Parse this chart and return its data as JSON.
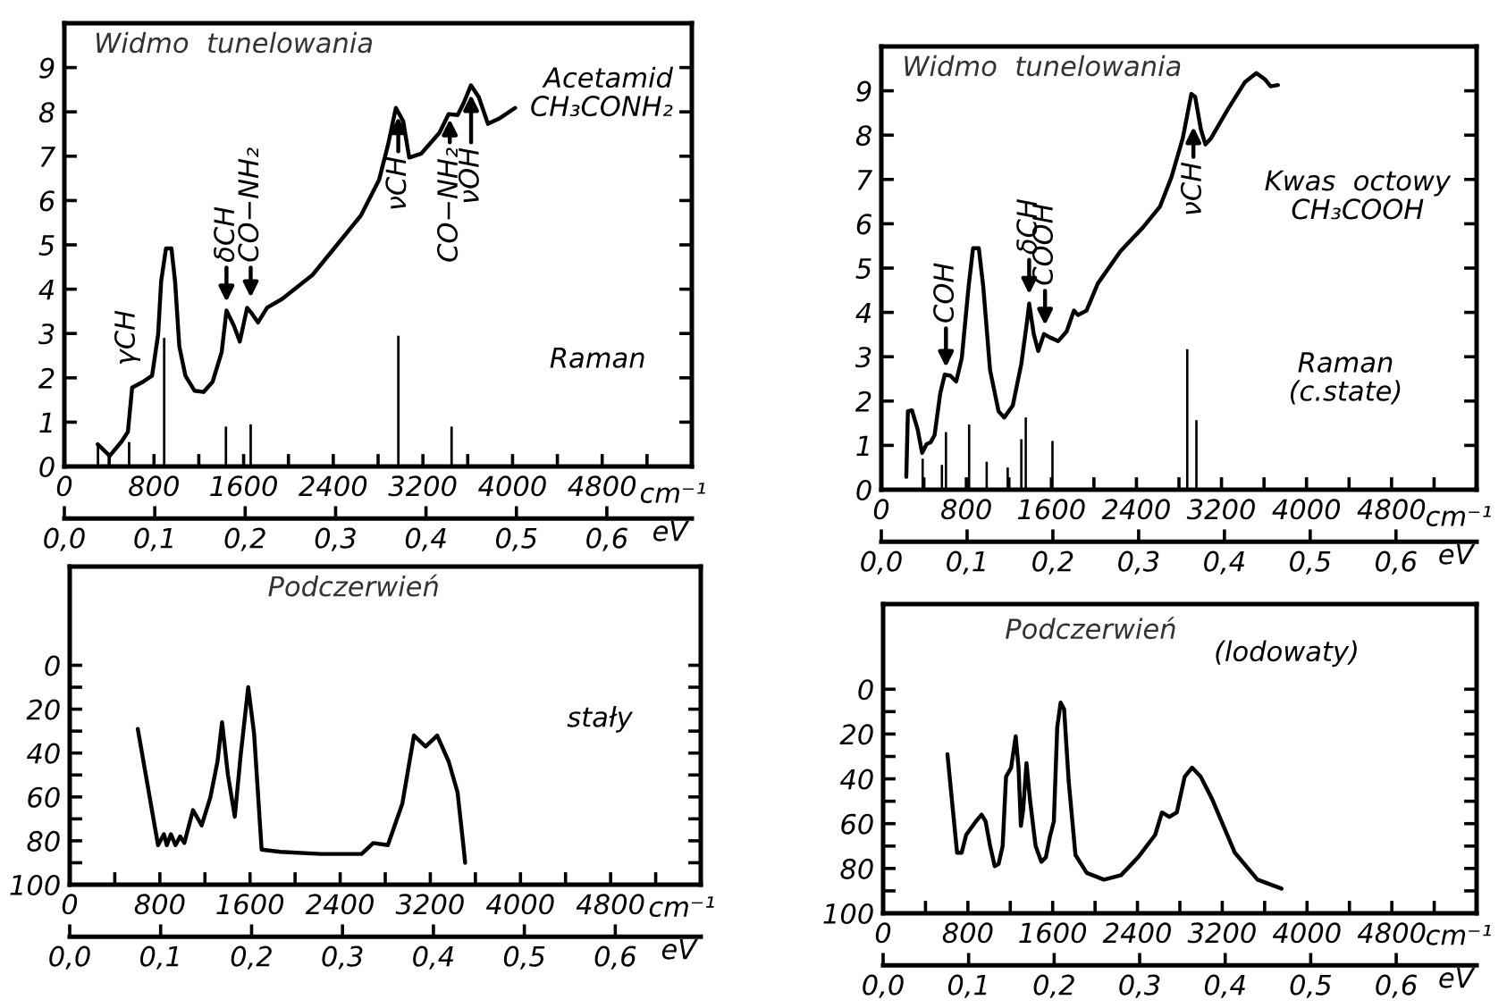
{
  "chart_data": [
    {
      "type": "line",
      "title": "Widmo  tunelowania",
      "xlabel": "cm⁻¹",
      "x2label": "eV",
      "annotations": [
        "Acetamid\nCH₃CONH₂",
        "Raman",
        "γCH",
        {
          "text": "δCH",
          "x": 1447,
          "y": 3.6
        },
        {
          "text": "CO−NH₂",
          "x": 1663,
          "y": 3.7
        },
        {
          "text": "νCH",
          "x": 2980,
          "y": 8.0
        },
        {
          "text": "CO−NH₂",
          "x": 3440,
          "y": 7.95
        },
        {
          "text": "νOH",
          "x": 3630,
          "y": 8.5
        }
      ],
      "xlim": [
        0,
        5600
      ],
      "xticks": [
        0,
        {
          "value": 400,
          "label": null
        },
        800,
        {
          "value": 1200,
          "label": null
        },
        1600,
        {
          "value": 2000,
          "label": null
        },
        2400,
        {
          "value": 2800,
          "label": null
        },
        3200,
        {
          "value": 3600,
          "label": null
        },
        4000,
        {
          "value": 4400,
          "label": null
        },
        4800,
        {
          "value": 5200,
          "label": null
        }
      ],
      "x2lim": [
        0,
        0.694
      ],
      "x2ticks": [
        {
          "value": 0,
          "label": "0,0"
        },
        {
          "value": 0.1,
          "label": "0,1"
        },
        {
          "value": 0.2,
          "label": "0,2"
        },
        {
          "value": 0.3,
          "label": "0,3"
        },
        {
          "value": 0.4,
          "label": "0,4"
        },
        {
          "value": 0.5,
          "label": "0,5"
        },
        {
          "value": 0.6,
          "label": "0,6"
        }
      ],
      "ylim": [
        0,
        10
      ],
      "yticks": [
        0,
        1,
        2,
        3,
        4,
        5,
        6,
        7,
        8,
        9
      ],
      "series": [
        {
          "color": "#000000",
          "x": [
            297,
            405,
            513,
            567,
            605,
            702,
            783,
            837,
            864,
            907,
            956,
            988,
            1026,
            1080,
            1161,
            1242,
            1323,
            1404,
            1447,
            1512,
            1566,
            1631,
            1674,
            1728,
            1809,
            1944,
            2214,
            2430,
            2646,
            2808,
            2889,
            2959,
            3024,
            3078,
            3186,
            3348,
            3429,
            3510,
            3564,
            3629,
            3699,
            3780,
            3888,
            4023
          ],
          "values": [
            0.5,
            0.24,
            0.57,
            0.78,
            1.78,
            1.91,
            2.05,
            2.98,
            4.18,
            4.92,
            4.92,
            4.18,
            2.71,
            2.05,
            1.71,
            1.68,
            1.91,
            2.58,
            3.52,
            3.18,
            2.82,
            3.58,
            3.45,
            3.25,
            3.58,
            3.78,
            4.32,
            4.99,
            5.66,
            6.46,
            7.26,
            8.09,
            7.79,
            6.97,
            7.06,
            7.53,
            7.95,
            7.93,
            8.2,
            8.6,
            8.33,
            7.73,
            7.86,
            8.09
          ]
        },
        {
          "type": "bar",
          "color": "#000000",
          "x": [
            300,
            578,
            891,
            1442,
            1663,
            2981,
            3456
          ],
          "values": [
            0.5,
            0.55,
            2.9,
            0.9,
            0.95,
            2.95,
            0.9
          ]
        }
      ]
    },
    {
      "type": "line",
      "title": "Widmo  tunelowania",
      "xlabel": "cm⁻¹",
      "x2label": "eV",
      "annotations": [
        "Kwas  octowy\nCH₃COOH",
        "Raman\n(c.state)",
        {
          "text": "COH",
          "x": 608,
          "y": 2.65
        },
        {
          "text": "δCH",
          "x": 1391,
          "y": 4.3
        },
        {
          "text": "COOH",
          "x": 1540,
          "y": 3.6
        },
        {
          "text": "νCH",
          "x": 2936,
          "y": 8.3
        }
      ],
      "xlim": [
        0,
        5600
      ],
      "xticks": [
        0,
        {
          "value": 400,
          "label": null
        },
        800,
        {
          "value": 1200,
          "label": null
        },
        1600,
        {
          "value": 2000,
          "label": null
        },
        2400,
        {
          "value": 2800,
          "label": null
        },
        3200,
        {
          "value": 3600,
          "label": null
        },
        4000,
        {
          "value": 4400,
          "label": null
        },
        4800,
        {
          "value": 5200,
          "label": null
        }
      ],
      "x2lim": [
        0,
        0.694
      ],
      "x2ticks": [
        {
          "value": 0,
          "label": "0,0"
        },
        {
          "value": 0.1,
          "label": "0,1"
        },
        {
          "value": 0.2,
          "label": "0,2"
        },
        {
          "value": 0.3,
          "label": "0,3"
        },
        {
          "value": 0.4,
          "label": "0,4"
        },
        {
          "value": 0.5,
          "label": "0,5"
        },
        {
          "value": 0.6,
          "label": "0,6"
        }
      ],
      "ylim": [
        0,
        10
      ],
      "yticks": [
        0,
        1,
        2,
        3,
        4,
        5,
        6,
        7,
        8,
        9
      ],
      "series": [
        {
          "color": "#000000",
          "x": [
            235,
            250,
            288,
            341,
            384,
            426,
            464,
            501,
            554,
            597,
            650,
            704,
            757,
            821,
            863,
            917,
            959,
            1023,
            1103,
            1157,
            1237,
            1317,
            1370,
            1391,
            1434,
            1476,
            1530,
            1583,
            1663,
            1743,
            1812,
            1850,
            1930,
            2036,
            2249,
            2462,
            2622,
            2729,
            2836,
            2916,
            2953,
            3006,
            3049,
            3102,
            3262,
            3422,
            3528,
            3608,
            3662,
            3731
          ],
          "values": [
            0.29,
            1.77,
            1.79,
            1.37,
            0.83,
            1.03,
            1.07,
            1.23,
            2.17,
            2.6,
            2.57,
            2.44,
            2.97,
            4.58,
            5.45,
            5.45,
            4.58,
            2.7,
            1.77,
            1.63,
            1.9,
            2.84,
            3.78,
            4.2,
            3.51,
            3.13,
            3.51,
            3.44,
            3.35,
            3.57,
            4.04,
            3.94,
            4.04,
            4.65,
            5.38,
            5.92,
            6.39,
            7.05,
            7.93,
            8.93,
            8.86,
            8.13,
            7.79,
            7.93,
            8.59,
            9.2,
            9.4,
            9.26,
            9.1,
            9.13
          ]
        },
        {
          "type": "bar",
          "color": "#000000",
          "x": [
            389,
            570,
            608,
            826,
            991,
            1189,
            1317,
            1359,
            1610,
            2878,
            2964
          ],
          "values": [
            0.7,
            0.56,
            1.3,
            1.47,
            0.63,
            0.5,
            1.14,
            1.63,
            1.1,
            3.17,
            1.57
          ]
        }
      ]
    },
    {
      "type": "line",
      "title": "Podczerwień",
      "xlabel": "cm⁻¹",
      "x2label": "eV",
      "annotations": [
        "stały"
      ],
      "xlim": [
        0,
        5600
      ],
      "xticks": [
        0,
        {
          "value": 400,
          "label": null
        },
        800,
        {
          "value": 1200,
          "label": null
        },
        1600,
        {
          "value": 2000,
          "label": null
        },
        2400,
        {
          "value": 2800,
          "label": null
        },
        3200,
        {
          "value": 3600,
          "label": null
        },
        4000,
        {
          "value": 4400,
          "label": null
        },
        4800,
        {
          "value": 5200,
          "label": null
        }
      ],
      "x2lim": [
        0,
        0.694
      ],
      "x2ticks": [
        {
          "value": 0,
          "label": "0,0"
        },
        {
          "value": 0.1,
          "label": "0,1"
        },
        {
          "value": 0.2,
          "label": "0,2"
        },
        {
          "value": 0.3,
          "label": "0,3"
        },
        {
          "value": 0.4,
          "label": "0,4"
        },
        {
          "value": 0.5,
          "label": "0,5"
        },
        {
          "value": 0.6,
          "label": "0,6"
        }
      ],
      "ylim": [
        100,
        -45
      ],
      "yticks": [
        0,
        {
          "value": 10,
          "label": null
        },
        20,
        {
          "value": 30,
          "label": null
        },
        40,
        {
          "value": 50,
          "label": null
        },
        60,
        {
          "value": 70,
          "label": null
        },
        80,
        {
          "value": 90,
          "label": null
        },
        100
      ],
      "series": [
        {
          "color": "#000000",
          "x": [
            604,
            784,
            836,
            862,
            898,
            939,
            980,
            1017,
            1053,
            1094,
            1171,
            1249,
            1311,
            1352,
            1404,
            1465,
            1517,
            1584,
            1636,
            1703,
            1868,
            2229,
            2590,
            2694,
            2823,
            2952,
            3055,
            3158,
            3261,
            3364,
            3442,
            3493,
            3509
          ],
          "values": [
            29,
            82,
            77,
            82,
            77,
            82,
            78,
            81,
            74,
            66,
            73,
            60,
            44,
            26,
            50,
            69,
            41,
            10,
            31,
            84,
            85,
            86,
            86,
            81,
            82,
            63,
            32,
            37,
            32,
            44,
            58,
            82,
            90
          ]
        }
      ]
    },
    {
      "type": "line",
      "title": "Podczerwień",
      "xlabel": "cm⁻¹",
      "x2label": "eV",
      "annotations": [
        "(lodowaty)"
      ],
      "xlim": [
        0,
        5600
      ],
      "xticks": [
        0,
        {
          "value": 400,
          "label": null
        },
        800,
        {
          "value": 1200,
          "label": null
        },
        1600,
        {
          "value": 2000,
          "label": null
        },
        2400,
        {
          "value": 2800,
          "label": null
        },
        3200,
        {
          "value": 3600,
          "label": null
        },
        4000,
        {
          "value": 4400,
          "label": null
        },
        4800,
        {
          "value": 5200,
          "label": null
        }
      ],
      "x2lim": [
        0,
        0.694
      ],
      "x2ticks": [
        {
          "value": 0,
          "label": "0,0"
        },
        {
          "value": 0.1,
          "label": "0,1"
        },
        {
          "value": 0.2,
          "label": "0,2"
        },
        {
          "value": 0.3,
          "label": "0,3"
        },
        {
          "value": 0.4,
          "label": "0,4"
        },
        {
          "value": 0.5,
          "label": "0,5"
        },
        {
          "value": 0.6,
          "label": "0,6"
        }
      ],
      "ylim": [
        100,
        -38
      ],
      "yticks": [
        0,
        {
          "value": 10,
          "label": null
        },
        20,
        {
          "value": 30,
          "label": null
        },
        40,
        {
          "value": 50,
          "label": null
        },
        60,
        {
          "value": 70,
          "label": null
        },
        80,
        {
          "value": 90,
          "label": null
        },
        100
      ],
      "series": [
        {
          "color": "#000000",
          "x": [
            607,
            698,
            741,
            784,
            875,
            929,
            967,
            1010,
            1053,
            1090,
            1128,
            1160,
            1208,
            1251,
            1278,
            1300,
            1321,
            1353,
            1385,
            1439,
            1493,
            1536,
            1573,
            1611,
            1643,
            1675,
            1708,
            1751,
            1815,
            1922,
            2084,
            2245,
            2406,
            2567,
            2631,
            2701,
            2771,
            2846,
            2916,
            2996,
            3104,
            3319,
            3533,
            3759
          ],
          "values": [
            29,
            73,
            73,
            65,
            59,
            56,
            59,
            70,
            79,
            78,
            70,
            39,
            35,
            21,
            35,
            61,
            54,
            33,
            49,
            70,
            77,
            75,
            66,
            59,
            17,
            6,
            9,
            41,
            74,
            82,
            85,
            83,
            75,
            65,
            55,
            57,
            55,
            39,
            35,
            39,
            49,
            73,
            85,
            89
          ]
        }
      ]
    }
  ]
}
